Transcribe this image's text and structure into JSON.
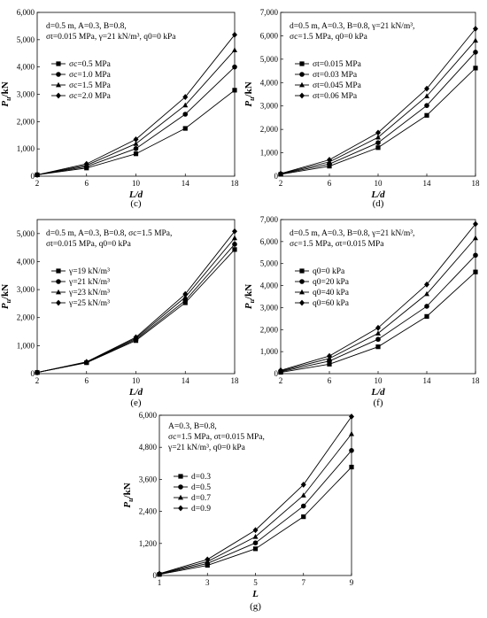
{
  "chart_data": [
    {
      "type": "line",
      "panel_label": "(c)",
      "annotation_lines": [
        "d=0.5 m, A=0.3, B=0.8,",
        "σt=0.015 MPa, γ=21 kN/m³, q0=0 kPa"
      ],
      "xlabel": "L/d",
      "ylabel": "Pu/kN",
      "x": [
        2,
        6,
        10,
        14,
        18
      ],
      "xticks": [
        "2",
        "6",
        "10",
        "14",
        "18"
      ],
      "xlim": [
        2,
        18
      ],
      "ylim": [
        0,
        6000
      ],
      "yticks": [
        "0",
        "1,000",
        "2,000",
        "3,000",
        "4,000",
        "5,000",
        "6,000"
      ],
      "series": [
        {
          "name": "σc=0.5 MPa",
          "marker": "square",
          "values": [
            50,
            300,
            820,
            1750,
            3150
          ]
        },
        {
          "name": "σc=1.0 MPa",
          "marker": "circle",
          "values": [
            50,
            350,
            1010,
            2270,
            4000
          ]
        },
        {
          "name": "σc=1.5 MPa",
          "marker": "triangle",
          "values": [
            50,
            400,
            1190,
            2600,
            4620
          ]
        },
        {
          "name": "σc=2.0 MPa",
          "marker": "diamond",
          "values": [
            50,
            450,
            1350,
            2900,
            5180
          ]
        }
      ]
    },
    {
      "type": "line",
      "panel_label": "(d)",
      "annotation_lines": [
        "d=0.5 m, A=0.3, B=0.8, γ=21 kN/m³,",
        "σc=1.5 MPa, q0=0 kPa"
      ],
      "xlabel": "L/d",
      "ylabel": "Pu/kN",
      "x": [
        2,
        6,
        10,
        14,
        18
      ],
      "xticks": [
        "2",
        "6",
        "10",
        "14",
        "18"
      ],
      "xlim": [
        2,
        18
      ],
      "ylim": [
        0,
        7000
      ],
      "yticks": [
        "0",
        "1,000",
        "2,000",
        "3,000",
        "4,000",
        "5,000",
        "6,000",
        "7,000"
      ],
      "series": [
        {
          "name": "σt=0.015 MPa",
          "marker": "square",
          "values": [
            80,
            430,
            1220,
            2600,
            4620
          ]
        },
        {
          "name": "σt=0.03 MPa",
          "marker": "circle",
          "values": [
            90,
            520,
            1430,
            3020,
            5300
          ]
        },
        {
          "name": "σt=0.045 MPa",
          "marker": "triangle",
          "values": [
            100,
            610,
            1660,
            3420,
            5800
          ]
        },
        {
          "name": "σt=0.06 MPa",
          "marker": "diamond",
          "values": [
            110,
            700,
            1860,
            3740,
            6300
          ]
        }
      ]
    },
    {
      "type": "line",
      "panel_label": "(e)",
      "annotation_lines": [
        "d=0.5 m, A=0.3, B=0.8, σc=1.5 MPa,",
        "σt=0.015 MPa, q0=0 kPa"
      ],
      "xlabel": "L/d",
      "ylabel": "Pu/kN",
      "x": [
        2,
        6,
        10,
        14,
        18
      ],
      "xticks": [
        "2",
        "6",
        "10",
        "14",
        "18"
      ],
      "xlim": [
        2,
        18
      ],
      "ylim": [
        0,
        5500
      ],
      "yticks": [
        "0",
        "1,000",
        "2,000",
        "3,000",
        "4,000",
        "5,000"
      ],
      "series": [
        {
          "name": "γ=19 kN/m³",
          "marker": "square",
          "values": [
            40,
            390,
            1180,
            2530,
            4430
          ]
        },
        {
          "name": "γ=21 kN/m³",
          "marker": "circle",
          "values": [
            40,
            400,
            1220,
            2610,
            4620
          ]
        },
        {
          "name": "γ=23 kN/m³",
          "marker": "triangle",
          "values": [
            40,
            410,
            1260,
            2730,
            4840
          ]
        },
        {
          "name": "γ=25 kN/m³",
          "marker": "diamond",
          "values": [
            40,
            420,
            1300,
            2840,
            5080
          ]
        }
      ]
    },
    {
      "type": "line",
      "panel_label": "(f)",
      "annotation_lines": [
        "d=0.5 m, A=0.3, B=0.8, γ=21 kN/m³,",
        "σc=1.5 MPa, σt=0.015 MPa"
      ],
      "xlabel": "L/d",
      "ylabel": "Pu/kN",
      "x": [
        2,
        6,
        10,
        14,
        18
      ],
      "xticks": [
        "2",
        "6",
        "10",
        "14",
        "18"
      ],
      "xlim": [
        2,
        18
      ],
      "ylim": [
        0,
        7000
      ],
      "yticks": [
        "0",
        "1,000",
        "2,000",
        "3,000",
        "4,000",
        "5,000",
        "6,000",
        "7,000"
      ],
      "series": [
        {
          "name": "q0=0 kPa",
          "marker": "square",
          "values": [
            60,
            430,
            1220,
            2600,
            4620
          ]
        },
        {
          "name": "q0=20 kPa",
          "marker": "circle",
          "values": [
            90,
            570,
            1560,
            3060,
            5380
          ]
        },
        {
          "name": "q0=40 kPa",
          "marker": "triangle",
          "values": [
            120,
            690,
            1830,
            3620,
            6160
          ]
        },
        {
          "name": "q0=60 kPa",
          "marker": "diamond",
          "values": [
            150,
            800,
            2080,
            4050,
            6800
          ]
        }
      ]
    },
    {
      "type": "line",
      "panel_label": "(g)",
      "annotation_lines": [
        "A=0.3, B=0.8,",
        "σc=1.5 MPa, σt=0.015 MPa,",
        "γ=21 kN/m³, q0=0 kPa"
      ],
      "xlabel": "L",
      "ylabel": "Pu/kN",
      "x": [
        1,
        3,
        5,
        7,
        9
      ],
      "xticks": [
        "1",
        "3",
        "5",
        "7",
        "9"
      ],
      "xlim": [
        1,
        9
      ],
      "ylim": [
        0,
        6000
      ],
      "yticks": [
        "0",
        "1,200",
        "2,400",
        "3,600",
        "4,800",
        "6,000"
      ],
      "series": [
        {
          "name": "d=0.3",
          "marker": "square",
          "values": [
            40,
            380,
            1000,
            2200,
            4060
          ]
        },
        {
          "name": "d=0.5",
          "marker": "circle",
          "values": [
            50,
            450,
            1220,
            2600,
            4680
          ]
        },
        {
          "name": "d=0.7",
          "marker": "triangle",
          "values": [
            60,
            520,
            1450,
            3000,
            5300
          ]
        },
        {
          "name": "d=0.9",
          "marker": "diamond",
          "values": [
            70,
            600,
            1700,
            3400,
            5950
          ]
        }
      ]
    }
  ]
}
